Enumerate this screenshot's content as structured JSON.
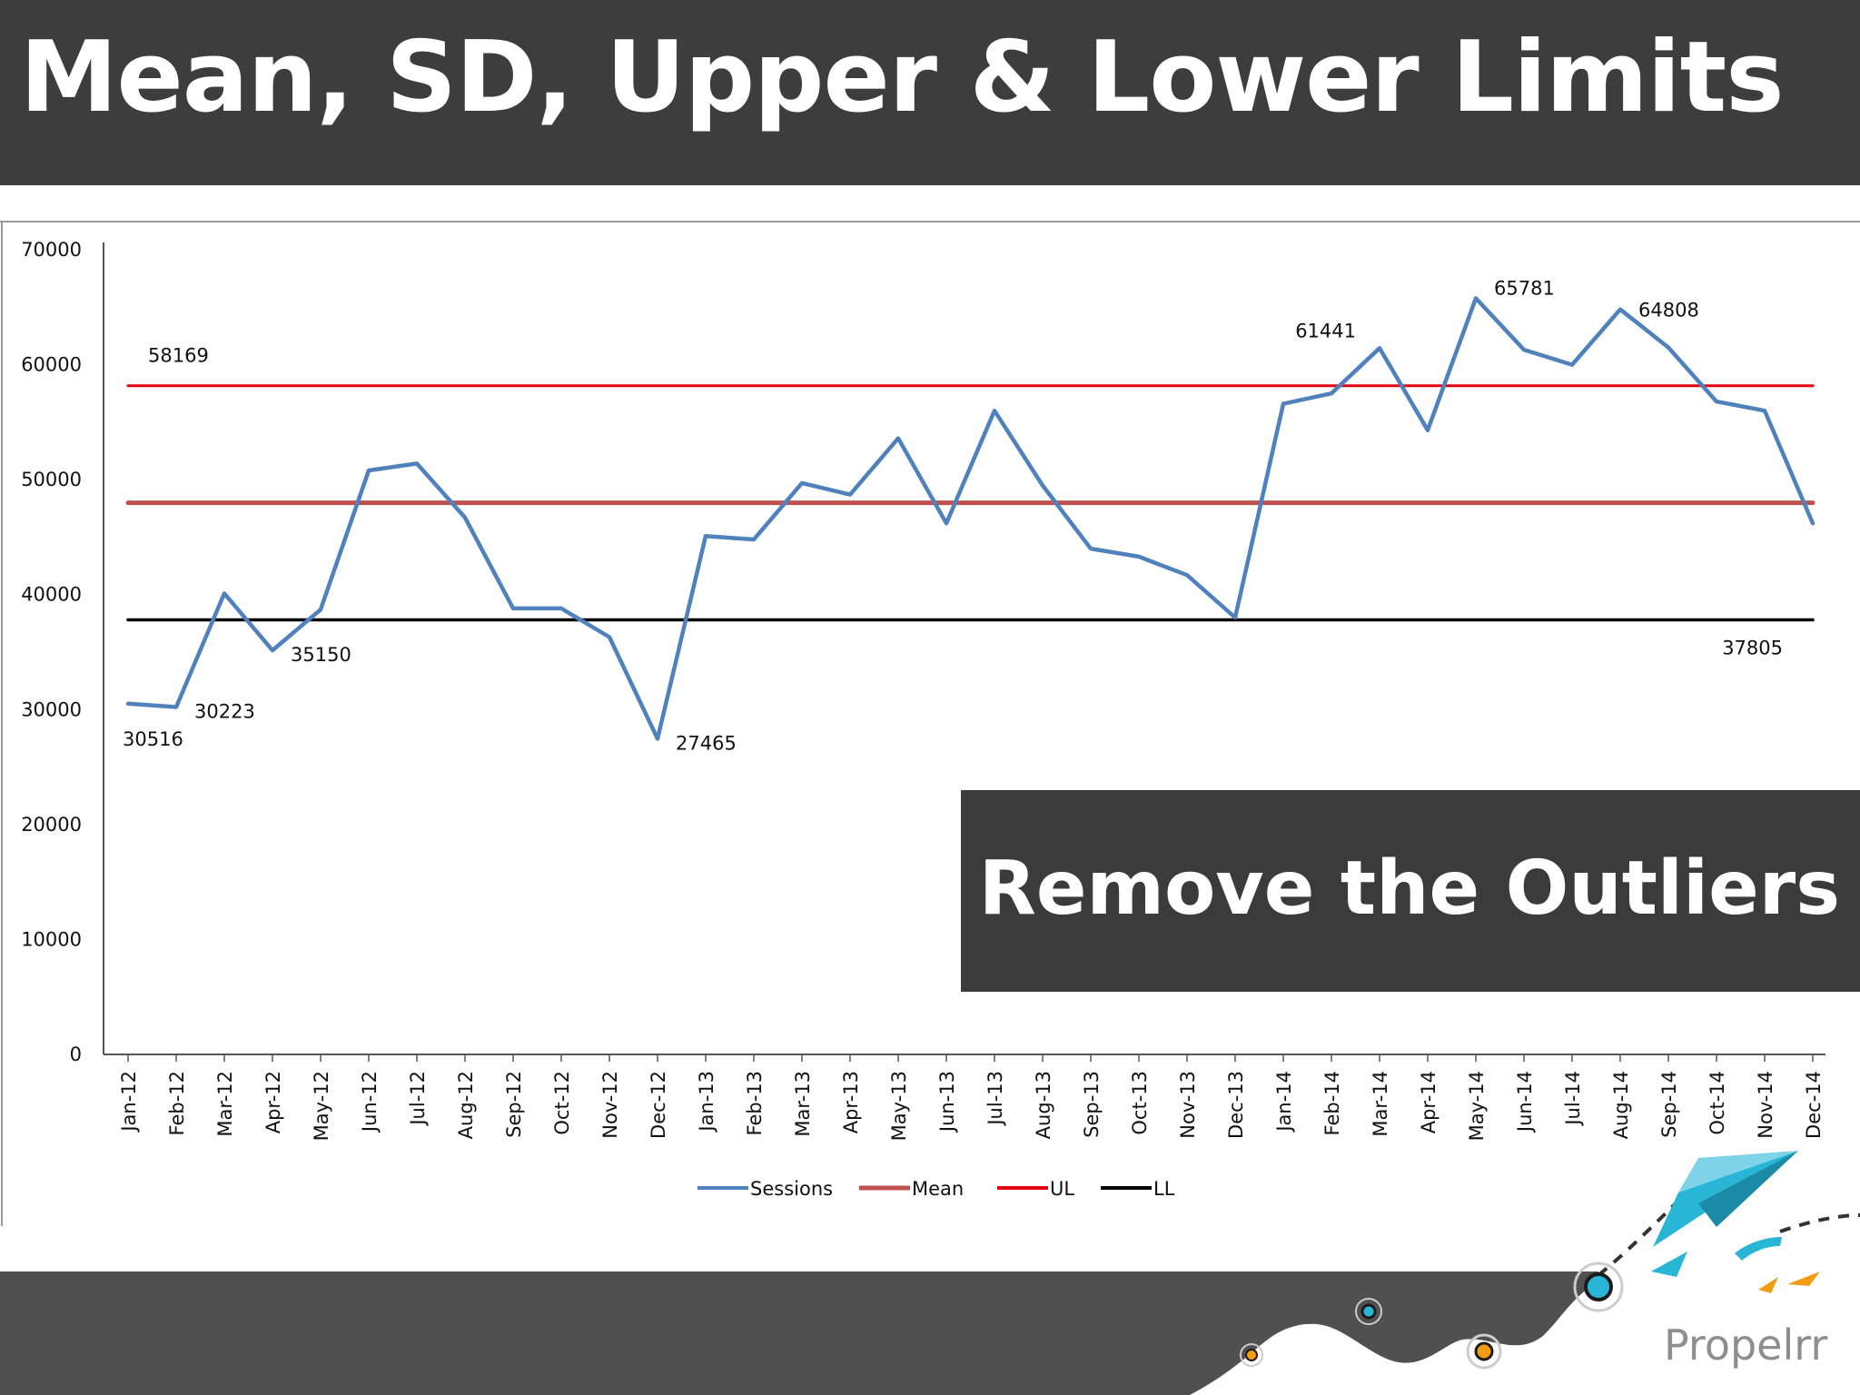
{
  "slide": {
    "title": "Mean, SD, Upper & Lower Limits",
    "callout": "Remove the Outliers",
    "brand": "Propelrr"
  },
  "colors": {
    "header_bg": "#3d3d3d",
    "sessions": "#4f81bd",
    "mean": "#c0504d",
    "ul": "#e3000f",
    "ll": "#000000",
    "brand_cyan": "#29b6d6",
    "brand_orange": "#f39c12"
  },
  "chart_data": {
    "type": "line",
    "categories": [
      "Jan-12",
      "Feb-12",
      "Mar-12",
      "Apr-12",
      "May-12",
      "Jun-12",
      "Jul-12",
      "Aug-12",
      "Sep-12",
      "Oct-12",
      "Nov-12",
      "Dec-12",
      "Jan-13",
      "Feb-13",
      "Mar-13",
      "Apr-13",
      "May-13",
      "Jun-13",
      "Jul-13",
      "Aug-13",
      "Sep-13",
      "Oct-13",
      "Nov-13",
      "Dec-13",
      "Jan-14",
      "Feb-14",
      "Mar-14",
      "Apr-14",
      "May-14",
      "Jun-14",
      "Jul-14",
      "Aug-14",
      "Sep-14",
      "Oct-14",
      "Nov-14",
      "Dec-14"
    ],
    "series": [
      {
        "name": "Sessions",
        "color": "#4f81bd",
        "values": [
          30516,
          30223,
          40100,
          35150,
          38700,
          50800,
          51400,
          46700,
          38800,
          38800,
          36300,
          27465,
          45100,
          44800,
          49700,
          48700,
          53600,
          46200,
          56000,
          49500,
          44000,
          43300,
          41700,
          38000,
          56600,
          57500,
          61441,
          54300,
          65781,
          61300,
          60000,
          64808,
          61500,
          56800,
          56000,
          46200
        ]
      },
      {
        "name": "Mean",
        "color": "#c0504d",
        "values": [
          47987,
          47987,
          47987,
          47987,
          47987,
          47987,
          47987,
          47987,
          47987,
          47987,
          47987,
          47987,
          47987,
          47987,
          47987,
          47987,
          47987,
          47987,
          47987,
          47987,
          47987,
          47987,
          47987,
          47987,
          47987,
          47987,
          47987,
          47987,
          47987,
          47987,
          47987,
          47987,
          47987,
          47987,
          47987,
          47987
        ]
      },
      {
        "name": "UL",
        "color": "#e3000f",
        "values": [
          58169,
          58169,
          58169,
          58169,
          58169,
          58169,
          58169,
          58169,
          58169,
          58169,
          58169,
          58169,
          58169,
          58169,
          58169,
          58169,
          58169,
          58169,
          58169,
          58169,
          58169,
          58169,
          58169,
          58169,
          58169,
          58169,
          58169,
          58169,
          58169,
          58169,
          58169,
          58169,
          58169,
          58169,
          58169,
          58169
        ]
      },
      {
        "name": "LL",
        "color": "#000000",
        "values": [
          37805,
          37805,
          37805,
          37805,
          37805,
          37805,
          37805,
          37805,
          37805,
          37805,
          37805,
          37805,
          37805,
          37805,
          37805,
          37805,
          37805,
          37805,
          37805,
          37805,
          37805,
          37805,
          37805,
          37805,
          37805,
          37805,
          37805,
          37805,
          37805,
          37805,
          37805,
          37805,
          37805,
          37805,
          37805,
          37805
        ]
      }
    ],
    "yticks": [
      "0",
      "10000",
      "20000",
      "30000",
      "40000",
      "50000",
      "60000",
      "70000"
    ],
    "ylim": [
      0,
      70000
    ],
    "annotations": [
      {
        "text": "30516",
        "series": "Sessions",
        "index": 0,
        "pos": "below"
      },
      {
        "text": "30223",
        "series": "Sessions",
        "index": 1,
        "pos": "right"
      },
      {
        "text": "35150",
        "series": "Sessions",
        "index": 3,
        "pos": "right"
      },
      {
        "text": "27465",
        "series": "Sessions",
        "index": 11,
        "pos": "right"
      },
      {
        "text": "61441",
        "series": "Sessions",
        "index": 26,
        "pos": "left"
      },
      {
        "text": "65781",
        "series": "Sessions",
        "index": 28,
        "pos": "right"
      },
      {
        "text": "64808",
        "series": "Sessions",
        "index": 31,
        "pos": "right"
      },
      {
        "text": "58169",
        "series": "UL",
        "index": 0,
        "pos": "above"
      },
      {
        "text": "37805",
        "series": "LL",
        "index": 34,
        "pos": "below"
      }
    ],
    "legend": {
      "position": "bottom",
      "entries": [
        "Sessions",
        "Mean",
        "UL",
        "LL"
      ]
    },
    "grid": false
  }
}
